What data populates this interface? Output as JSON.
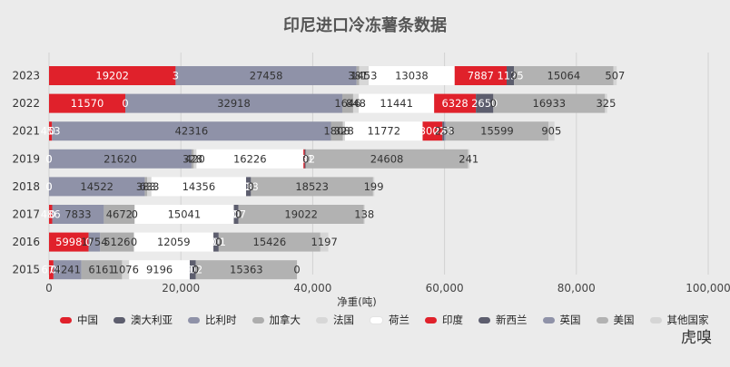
{
  "logo": "虎嗅",
  "chart_data": {
    "type": "bar",
    "orientation": "horizontal",
    "stacked": true,
    "title": "印尼进口冷冻薯条数据",
    "xlabel": "净重(吨)",
    "ylabel": "",
    "xlim": [
      0,
      100000
    ],
    "xticks": [
      0,
      20000,
      40000,
      60000,
      80000,
      100000
    ],
    "xtick_labels": [
      "0",
      "20,000",
      "40,000",
      "60,000",
      "80,000",
      "100,000"
    ],
    "grid": true,
    "legend_position": "bottom",
    "categories": [
      "2023",
      "2022",
      "2021",
      "2019",
      "2018",
      "2017",
      "2016",
      "2015"
    ],
    "series": [
      {
        "name": "中国",
        "color": "#e0212b",
        "label_color": "#ffffff",
        "values": [
          19202,
          11570,
          453,
          0,
          0,
          486,
          5998,
          674
        ]
      },
      {
        "name": "澳大利亚",
        "color": "#5d5e6e",
        "label_color": "#ffffff",
        "values": [
          3,
          0,
          0,
          0,
          0,
          0,
          0,
          0
        ]
      },
      {
        "name": "比利时",
        "color": "#8f92a8",
        "label_color": "#333333",
        "values": [
          27458,
          32918,
          42316,
          21620,
          14522,
          7833,
          1754,
          4241
        ]
      },
      {
        "name": "加拿大",
        "color": "#adadad",
        "label_color": "#333333",
        "values": [
          381,
          1646,
          1808,
          328,
          383,
          4672,
          5126,
          6161
        ]
      },
      {
        "name": "法国",
        "color": "#d7d7d7",
        "label_color": "#333333",
        "values": [
          1453,
          848,
          328,
          420,
          633,
          0,
          0,
          1076
        ]
      },
      {
        "name": "荷兰",
        "color": "#ffffff",
        "label_color": "#333333",
        "values": [
          13038,
          11441,
          11772,
          16226,
          14356,
          15041,
          12059,
          9196
        ]
      },
      {
        "name": "印度",
        "color": "#e0212b",
        "label_color": "#ffffff",
        "values": [
          7887,
          6328,
          3002,
          181,
          0,
          0,
          0,
          0
        ]
      },
      {
        "name": "新西兰",
        "color": "#5d5e6e",
        "label_color": "#ffffff",
        "values": [
          1125,
          2650,
          233,
          172,
          738,
          707,
          801,
          902
        ]
      },
      {
        "name": "英国",
        "color": "#8f92a8",
        "label_color": "#333333",
        "values": [
          0,
          0,
          253,
          0,
          0,
          0,
          0,
          0
        ]
      },
      {
        "name": "美国",
        "color": "#b2b2b2",
        "label_color": "#333333",
        "values": [
          15064,
          16933,
          15599,
          24608,
          18523,
          19022,
          15426,
          15363
        ]
      },
      {
        "name": "其他国家",
        "color": "#d5d5d5",
        "label_color": "#333333",
        "values": [
          507,
          325,
          905,
          241,
          199,
          138,
          1197,
          0
        ]
      }
    ]
  }
}
